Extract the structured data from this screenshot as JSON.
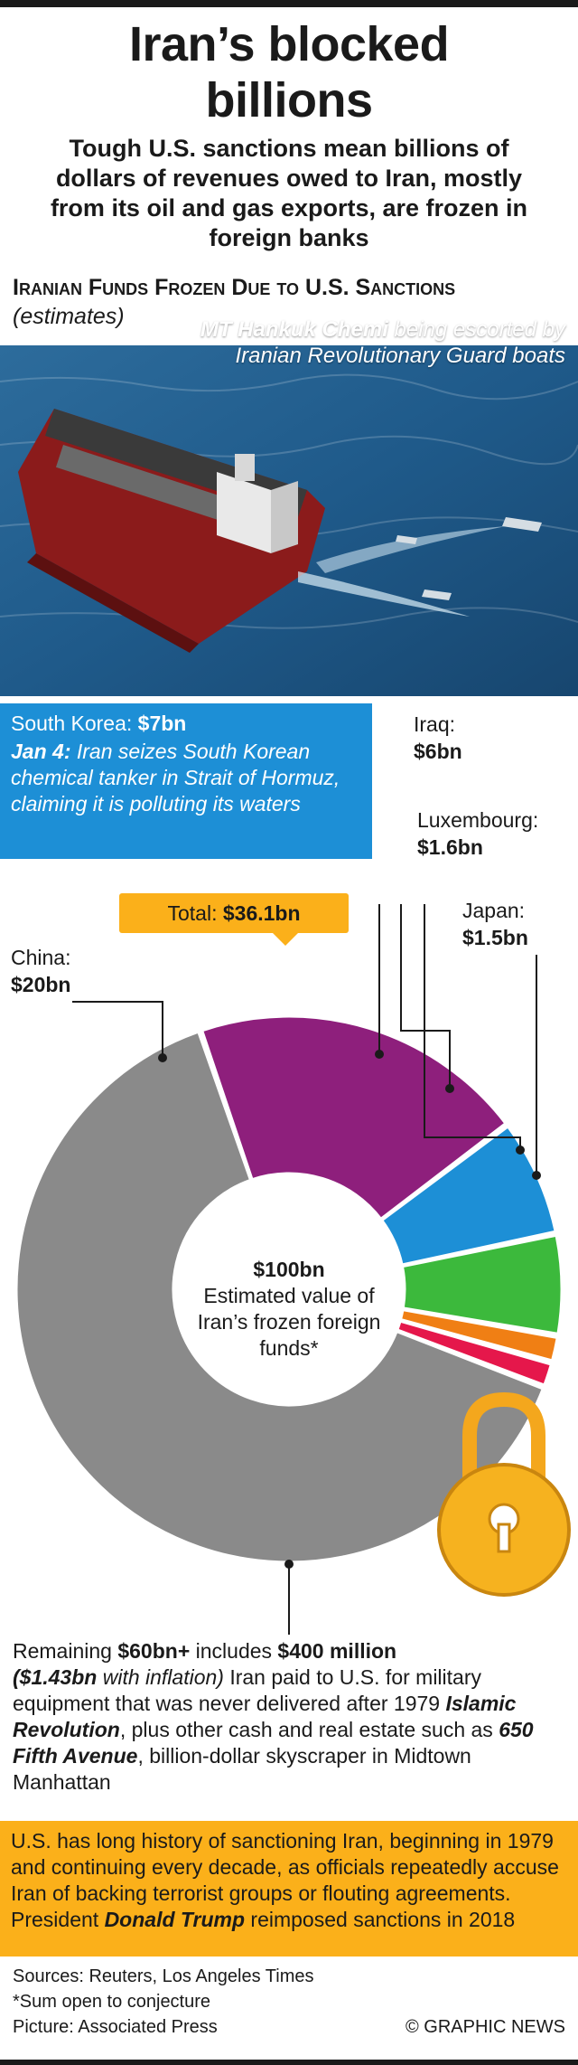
{
  "header": {
    "title_line1": "Iran’s blocked",
    "title_line2": "billions",
    "subtitle": "Tough U.S. sanctions mean billions of dollars of revenues owed to Iran, mostly from its oil and gas exports, are frozen in foreign banks"
  },
  "section": {
    "heading": "Iranian Funds Frozen Due to U.S. Sanctions",
    "note": "(estimates)"
  },
  "photo": {
    "caption_bold": "MT Hankuk Chemi",
    "caption_rest": " being escorted by Iranian Revolutionary Guard boats"
  },
  "south_korea": {
    "name": "South Korea: ",
    "value": "$7bn",
    "event_date": "Jan 4:",
    "event_text": " Iran seizes South Korean chemical tanker in Strait of Hormuz, claiming it is polluting its waters"
  },
  "labels": {
    "iraq_name": "Iraq:",
    "iraq_value": "$6bn",
    "lux_name": "Luxembourg:",
    "lux_value": "$1.6bn",
    "japan_name": "Japan:",
    "japan_value": "$1.5bn",
    "china_name": "China:",
    "china_value": "$20bn"
  },
  "total": {
    "label": "Total: ",
    "value": "$36.1bn"
  },
  "center": {
    "value": "$100bn",
    "text": "Estimated value of Iran’s frozen foreign funds*"
  },
  "remaining": {
    "p1": "Remaining ",
    "b1": "$60bn+",
    "p2": " includes ",
    "b2": "$400 million",
    "i1": "($1.43bn",
    "i2": " with inflation)",
    "p3": " Iran paid to U.S. for military equipment that was never delivered after 1979 ",
    "b3": "Islamic Revolution",
    "p4": ", plus other cash and real estate such as ",
    "b4": "650 Fifth Avenue",
    "p5": ", billion-dollar skyscraper in Midtown Manhattan"
  },
  "history": {
    "p1": "U.S. has long history of sanctioning Iran, beginning in 1979 and continuing every decade, as officials repeatedly accuse Iran of backing terrorist groups or flouting agreements. President ",
    "b1": "Donald Trump",
    "p2": " reimposed sanctions in 2018"
  },
  "footer": {
    "sources": "Sources: Reuters, Los Angeles Times",
    "footnote": "*Sum open to conjecture",
    "picture": "Picture: Associated Press",
    "credit": "© GRAPHIC NEWS"
  },
  "colors": {
    "china": "#8e1f7c",
    "south_korea": "#1d8fd6",
    "iraq": "#3cb93c",
    "luxembourg": "#f07f14",
    "japan": "#e5174b",
    "remaining": "#8a8a8a",
    "accent": "#fbb01a"
  },
  "chart_data": {
    "type": "pie",
    "total": 100,
    "unit": "bn",
    "slices": [
      {
        "name": "China",
        "value": 20,
        "color": "#8e1f7c"
      },
      {
        "name": "South Korea",
        "value": 7,
        "color": "#1d8fd6"
      },
      {
        "name": "Iraq",
        "value": 6,
        "color": "#3cb93c"
      },
      {
        "name": "Luxembourg",
        "value": 1.6,
        "color": "#f07f14"
      },
      {
        "name": "Japan",
        "value": 1.5,
        "color": "#e5174b"
      },
      {
        "name": "Remaining",
        "value": 63.9,
        "color": "#8a8a8a"
      }
    ]
  }
}
